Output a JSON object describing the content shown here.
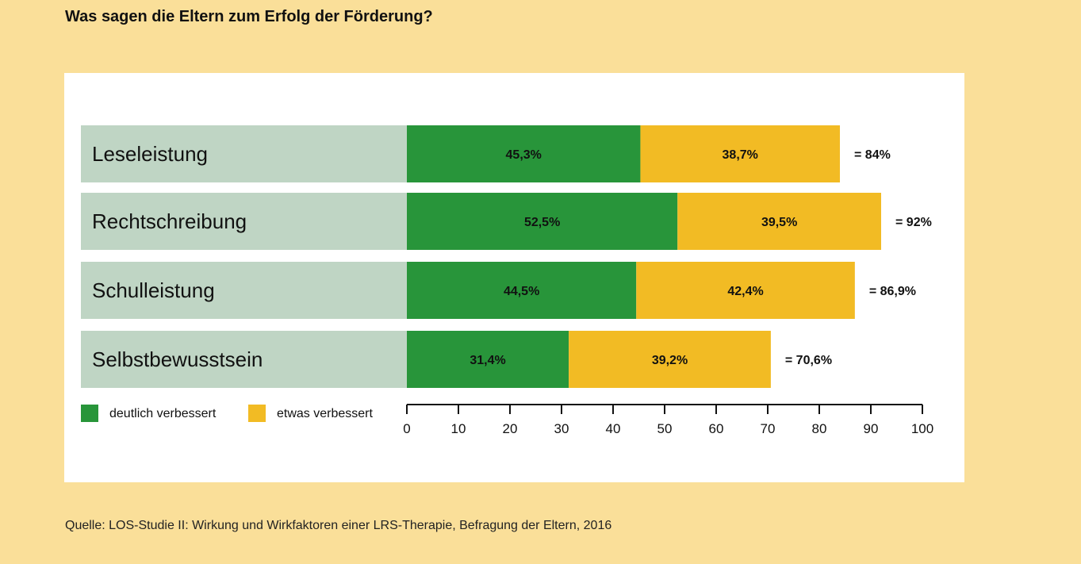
{
  "header": {
    "title": "Was sagen die Eltern zum Erfolg der Förderung?"
  },
  "footer": {
    "source": "Quelle: LOS-Studie II: Wirkung und Wirkfaktoren einer LRS-Therapie, Befragung der Eltern, 2016"
  },
  "colors": {
    "background": "#fadf99",
    "panel": "#ffffff",
    "label_band": "#bfd5c4",
    "deutlich": "#28953a",
    "etwas": "#f2bb24"
  },
  "chart_data": {
    "type": "bar",
    "orientation": "horizontal",
    "stacked": true,
    "title": "Was sagen die Eltern zum Erfolg der Förderung?",
    "categories": [
      "Leseleistung",
      "Rechtschreibung",
      "Schulleistung",
      "Selbstbewusstsein"
    ],
    "series": [
      {
        "name": "deutlich verbessert",
        "color": "#28953a",
        "values": [
          45.3,
          52.5,
          44.5,
          31.4
        ],
        "labels": [
          "45,3%",
          "52,5%",
          "44,5%",
          "31,4%"
        ]
      },
      {
        "name": "etwas verbessert",
        "color": "#f2bb24",
        "values": [
          38.7,
          39.5,
          42.4,
          39.2
        ],
        "labels": [
          "38,7%",
          "39,5%",
          "42,4%",
          "39,2%"
        ]
      }
    ],
    "totals": [
      "= 84%",
      "= 92%",
      "= 86,9%",
      "= 70,6%"
    ],
    "xlim": [
      0,
      100
    ],
    "xticks": [
      0,
      10,
      20,
      30,
      40,
      50,
      60,
      70,
      80,
      90,
      100
    ],
    "grid": false,
    "legend": "bottom-left"
  }
}
